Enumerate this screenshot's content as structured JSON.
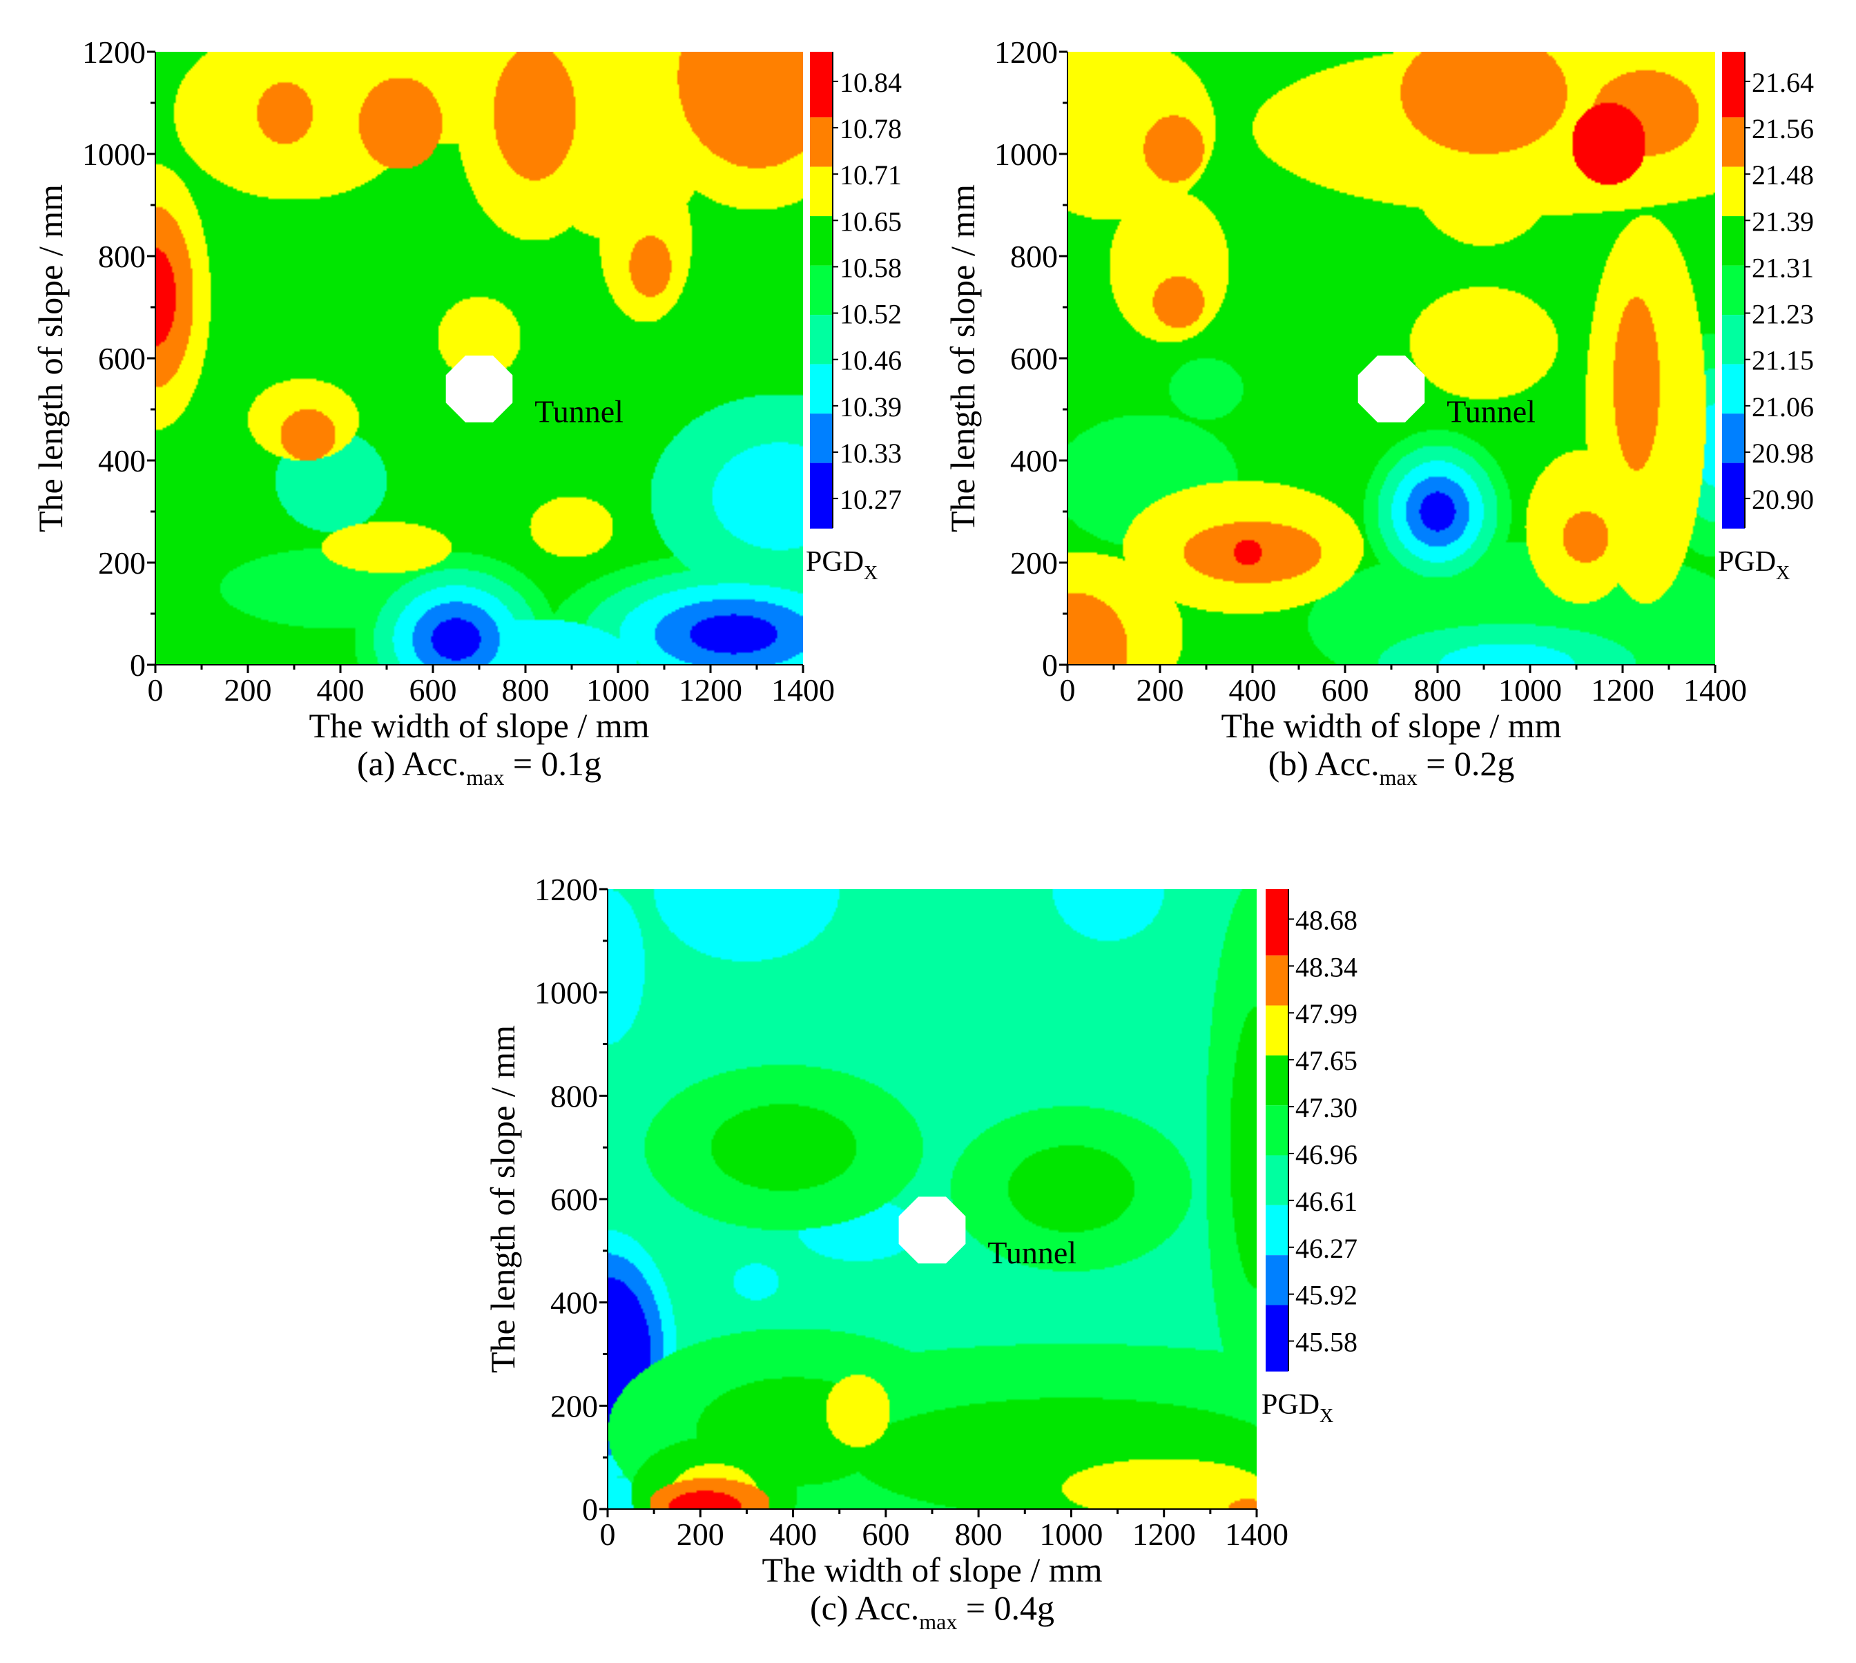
{
  "chart_data": [
    {
      "type": "heatmap",
      "caption": {
        "prefix": "(a) Acc.",
        "sub": "max",
        "suffix": " = 0.1g"
      },
      "xlabel": "The width of slope / mm",
      "ylabel": "The length of slope / mm",
      "xlim": [
        0,
        1400
      ],
      "ylim": [
        0,
        1200
      ],
      "xticks": [
        "0",
        "200",
        "400",
        "600",
        "800",
        "1000",
        "1200",
        "1400"
      ],
      "yticks": [
        "0",
        "200",
        "400",
        "600",
        "800",
        "1000",
        "1200"
      ],
      "annotation": "Tunnel",
      "tunnel": {
        "x": 700,
        "y": 540,
        "r": 75
      },
      "colorbar": {
        "title": "PGD",
        "title_sub": "X",
        "levels": [
          "10.84",
          "10.78",
          "10.71",
          "10.65",
          "10.58",
          "10.52",
          "10.46",
          "10.39",
          "10.33",
          "10.27"
        ],
        "colors": [
          "#ff0000",
          "#ff8000",
          "#ffff00",
          "#00e600",
          "#00ff40",
          "#00ffa0",
          "#00ffff",
          "#0080ff",
          "#0000ff"
        ]
      },
      "base_level": 3,
      "blobs": [
        {
          "x": 0,
          "y": 720,
          "rx": 120,
          "ry": 260,
          "l": 0,
          "k": 3
        },
        {
          "x": 1300,
          "y": 1150,
          "rx": 250,
          "ry": 260,
          "l": 1,
          "k": 3
        },
        {
          "x": 820,
          "y": 1080,
          "rx": 170,
          "ry": 250,
          "l": 1,
          "k": 2
        },
        {
          "x": 300,
          "y": 1080,
          "rx": 260,
          "ry": 170,
          "l": 2,
          "k": 2
        },
        {
          "x": 600,
          "y": 1130,
          "rx": 320,
          "ry": 110,
          "l": 2,
          "k": 2
        },
        {
          "x": 1000,
          "y": 1050,
          "rx": 200,
          "ry": 220,
          "l": 2,
          "k": 2
        },
        {
          "x": 1060,
          "y": 830,
          "rx": 100,
          "ry": 160,
          "l": 2,
          "k": 2
        },
        {
          "x": 320,
          "y": 480,
          "rx": 120,
          "ry": 80,
          "l": 2,
          "k": 2
        },
        {
          "x": 900,
          "y": 270,
          "rx": 90,
          "ry": 60,
          "l": 2,
          "k": 2
        },
        {
          "x": 500,
          "y": 230,
          "rx": 140,
          "ry": 50,
          "l": 2,
          "k": 2
        },
        {
          "x": 700,
          "y": 640,
          "rx": 90,
          "ry": 80,
          "l": 2,
          "k": 2
        },
        {
          "x": 530,
          "y": 1060,
          "rx": 90,
          "ry": 90,
          "l": 1,
          "k": 1
        },
        {
          "x": 280,
          "y": 1080,
          "rx": 60,
          "ry": 60,
          "l": 1,
          "k": 1
        },
        {
          "x": 1070,
          "y": 780,
          "rx": 45,
          "ry": 60,
          "l": 1,
          "k": 1
        },
        {
          "x": 330,
          "y": 450,
          "rx": 60,
          "ry": 50,
          "l": 1,
          "k": 1
        },
        {
          "x": 650,
          "y": 50,
          "rx": 220,
          "ry": 170,
          "l": 8,
          "k": 5
        },
        {
          "x": 1250,
          "y": 60,
          "rx": 400,
          "ry": 160,
          "l": 8,
          "k": 5
        },
        {
          "x": 1350,
          "y": 330,
          "rx": 280,
          "ry": 200,
          "l": 6,
          "k": 2
        },
        {
          "x": 380,
          "y": 360,
          "rx": 120,
          "ry": 100,
          "l": 5,
          "k": 1
        },
        {
          "x": 820,
          "y": 0,
          "rx": 220,
          "ry": 90,
          "l": 6,
          "k": 1
        },
        {
          "x": 400,
          "y": 150,
          "rx": 260,
          "ry": 80,
          "l": 4,
          "k": 1
        }
      ]
    },
    {
      "type": "heatmap",
      "caption": {
        "prefix": "(b) Acc.",
        "sub": "max",
        "suffix": " = 0.2g"
      },
      "xlabel": "The width of slope / mm",
      "ylabel": "The length of slope / mm",
      "xlim": [
        0,
        1400
      ],
      "ylim": [
        0,
        1200
      ],
      "xticks": [
        "0",
        "200",
        "400",
        "600",
        "800",
        "1000",
        "1200",
        "1400"
      ],
      "yticks": [
        "0",
        "200",
        "400",
        "600",
        "800",
        "1000",
        "1200"
      ],
      "annotation": "Tunnel",
      "tunnel": {
        "x": 700,
        "y": 540,
        "r": 75
      },
      "colorbar": {
        "title": "PGD",
        "title_sub": "X",
        "levels": [
          "21.64",
          "21.56",
          "21.48",
          "21.39",
          "21.31",
          "21.23",
          "21.15",
          "21.06",
          "20.98",
          "20.90"
        ],
        "colors": [
          "#ff0000",
          "#ff8000",
          "#ffff00",
          "#00e600",
          "#00ff40",
          "#00ffa0",
          "#00ffff",
          "#0080ff",
          "#0000ff"
        ]
      },
      "base_level": 3,
      "blobs": [
        {
          "x": 1000,
          "y": 1050,
          "rx": 600,
          "ry": 170,
          "l": 2,
          "k": 2
        },
        {
          "x": 100,
          "y": 1050,
          "rx": 220,
          "ry": 180,
          "l": 2,
          "k": 2
        },
        {
          "x": 220,
          "y": 780,
          "rx": 130,
          "ry": 150,
          "l": 2,
          "k": 2
        },
        {
          "x": 900,
          "y": 980,
          "rx": 160,
          "ry": 160,
          "l": 2,
          "k": 2
        },
        {
          "x": 1250,
          "y": 1080,
          "rx": 220,
          "ry": 160,
          "l": 1,
          "k": 2
        },
        {
          "x": 1170,
          "y": 1020,
          "rx": 80,
          "ry": 80,
          "l": 0,
          "k": 1
        },
        {
          "x": 900,
          "y": 1120,
          "rx": 180,
          "ry": 120,
          "l": 1,
          "k": 1
        },
        {
          "x": 230,
          "y": 1010,
          "rx": 65,
          "ry": 65,
          "l": 1,
          "k": 1
        },
        {
          "x": 240,
          "y": 710,
          "rx": 55,
          "ry": 50,
          "l": 1,
          "k": 1
        },
        {
          "x": 900,
          "y": 630,
          "rx": 160,
          "ry": 110,
          "l": 2,
          "k": 2
        },
        {
          "x": 1250,
          "y": 500,
          "rx": 130,
          "ry": 380,
          "l": 2,
          "k": 2
        },
        {
          "x": 1230,
          "y": 550,
          "rx": 50,
          "ry": 170,
          "l": 1,
          "k": 1
        },
        {
          "x": 1110,
          "y": 270,
          "rx": 120,
          "ry": 150,
          "l": 2,
          "k": 2
        },
        {
          "x": 1120,
          "y": 250,
          "rx": 50,
          "ry": 50,
          "l": 1,
          "k": 1
        },
        {
          "x": 380,
          "y": 230,
          "rx": 260,
          "ry": 130,
          "l": 2,
          "k": 2
        },
        {
          "x": 400,
          "y": 220,
          "rx": 150,
          "ry": 60,
          "l": 1,
          "k": 1
        },
        {
          "x": 390,
          "y": 220,
          "rx": 30,
          "ry": 25,
          "l": 0,
          "k": 1
        },
        {
          "x": 30,
          "y": 60,
          "rx": 220,
          "ry": 160,
          "l": 2,
          "k": 2
        },
        {
          "x": 20,
          "y": 30,
          "rx": 110,
          "ry": 110,
          "l": 1,
          "k": 1
        },
        {
          "x": 800,
          "y": 300,
          "rx": 160,
          "ry": 160,
          "l": 8,
          "k": 5
        },
        {
          "x": 1400,
          "y": 430,
          "rx": 130,
          "ry": 220,
          "l": 6,
          "k": 3
        },
        {
          "x": 950,
          "y": 0,
          "rx": 280,
          "ry": 80,
          "l": 6,
          "k": 2
        },
        {
          "x": 1000,
          "y": 80,
          "rx": 480,
          "ry": 160,
          "l": 4,
          "k": 1
        },
        {
          "x": 170,
          "y": 360,
          "rx": 200,
          "ry": 130,
          "l": 4,
          "k": 1
        },
        {
          "x": 300,
          "y": 540,
          "rx": 80,
          "ry": 60,
          "l": 4,
          "k": 1
        }
      ]
    },
    {
      "type": "heatmap",
      "caption": {
        "prefix": "(c) Acc.",
        "sub": "max",
        "suffix": " = 0.4g"
      },
      "xlabel": "The width of slope / mm",
      "ylabel": "The length of slope / mm",
      "xlim": [
        0,
        1400
      ],
      "ylim": [
        0,
        1200
      ],
      "xticks": [
        "0",
        "200",
        "400",
        "600",
        "800",
        "1000",
        "1200",
        "1400"
      ],
      "yticks": [
        "0",
        "200",
        "400",
        "600",
        "800",
        "1000",
        "1200"
      ],
      "annotation": "Tunnel",
      "tunnel": {
        "x": 700,
        "y": 540,
        "r": 75
      },
      "colorbar": {
        "title": "PGD",
        "title_sub": "X",
        "levels": [
          "48.68",
          "48.34",
          "47.99",
          "47.65",
          "47.30",
          "46.96",
          "46.61",
          "46.27",
          "45.92",
          "45.58"
        ],
        "colors": [
          "#ff0000",
          "#ff8000",
          "#ffff00",
          "#00e600",
          "#00ff40",
          "#00ffa0",
          "#00ffff",
          "#0080ff",
          "#0000ff"
        ]
      },
      "base_level": 5,
      "blobs": [
        {
          "x": 1000,
          "y": 100,
          "rx": 900,
          "ry": 220,
          "l": 3,
          "k": 2
        },
        {
          "x": 400,
          "y": 150,
          "rx": 400,
          "ry": 200,
          "l": 3,
          "k": 2
        },
        {
          "x": 1400,
          "y": 700,
          "rx": 110,
          "ry": 520,
          "l": 3,
          "k": 2
        },
        {
          "x": 380,
          "y": 700,
          "rx": 300,
          "ry": 160,
          "l": 3,
          "k": 2
        },
        {
          "x": 1000,
          "y": 620,
          "rx": 260,
          "ry": 160,
          "l": 3,
          "k": 2
        },
        {
          "x": 1200,
          "y": 40,
          "rx": 420,
          "ry": 110,
          "l": 2,
          "k": 2
        },
        {
          "x": 230,
          "y": 30,
          "rx": 180,
          "ry": 110,
          "l": 2,
          "k": 2
        },
        {
          "x": 540,
          "y": 190,
          "rx": 70,
          "ry": 70,
          "l": 2,
          "k": 1
        },
        {
          "x": 220,
          "y": 10,
          "rx": 130,
          "ry": 50,
          "l": 1,
          "k": 1
        },
        {
          "x": 210,
          "y": 0,
          "rx": 80,
          "ry": 35,
          "l": 0,
          "k": 1
        },
        {
          "x": 1380,
          "y": 0,
          "rx": 40,
          "ry": 20,
          "l": 1,
          "k": 1
        },
        {
          "x": 0,
          "y": 300,
          "rx": 150,
          "ry": 240,
          "l": 8,
          "k": 5
        },
        {
          "x": 0,
          "y": 0,
          "rx": 170,
          "ry": 60,
          "l": 6,
          "k": 2
        },
        {
          "x": 300,
          "y": 1200,
          "rx": 200,
          "ry": 140,
          "l": 6,
          "k": 2
        },
        {
          "x": 1080,
          "y": 1200,
          "rx": 120,
          "ry": 100,
          "l": 6,
          "k": 2
        },
        {
          "x": 0,
          "y": 1050,
          "rx": 80,
          "ry": 150,
          "l": 6,
          "k": 2
        },
        {
          "x": 540,
          "y": 540,
          "rx": 130,
          "ry": 60,
          "l": 6,
          "k": 2
        },
        {
          "x": 320,
          "y": 440,
          "rx": 50,
          "ry": 35,
          "l": 6,
          "k": 1
        }
      ]
    }
  ]
}
